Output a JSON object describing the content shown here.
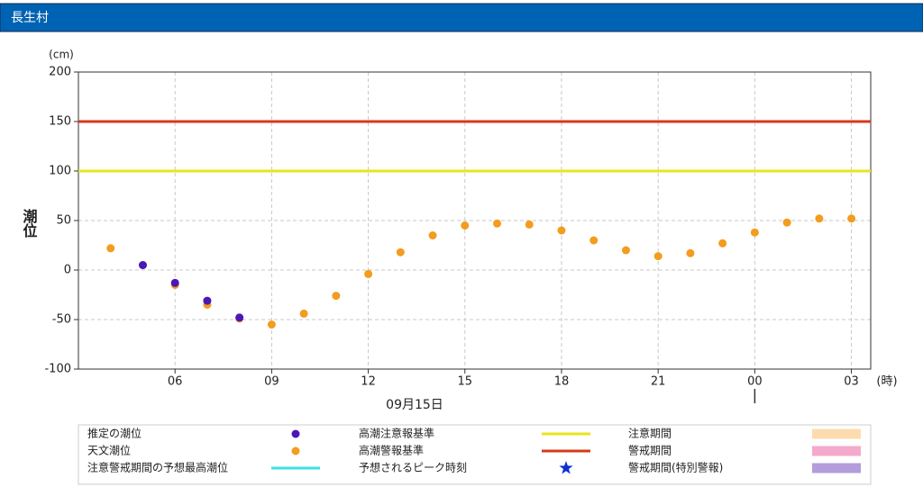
{
  "page_title": "長生村",
  "chart_data": {
    "type": "scatter",
    "y_label": "潮位",
    "y_unit": "(cm)",
    "x_unit": "(時)",
    "date_label": "09月15日",
    "date_boundary": 24,
    "xlim": [
      3,
      27.6
    ],
    "xticks": [
      {
        "value": 6,
        "label": "06"
      },
      {
        "value": 9,
        "label": "09"
      },
      12,
      15,
      18,
      21,
      {
        "value": 24,
        "label": "00"
      },
      {
        "value": 27,
        "label": "03"
      }
    ],
    "ylim": [
      -100,
      200
    ],
    "yticks": [
      -100,
      -50,
      0,
      50,
      100,
      150,
      200
    ],
    "grid": true,
    "series": [
      {
        "name": "天文潮位",
        "color": "#f39c1e",
        "x": [
          4,
          5,
          6,
          7,
          8,
          9,
          10,
          11,
          12,
          13,
          14,
          15,
          16,
          17,
          18,
          19,
          20,
          21,
          22,
          23,
          24,
          25,
          26,
          27
        ],
        "values": [
          22,
          5,
          -15,
          -35,
          -49,
          -55,
          -44,
          -26,
          -4,
          18,
          35,
          45,
          47,
          46,
          40,
          30,
          20,
          14,
          17,
          27,
          38,
          48,
          52,
          52
        ]
      },
      {
        "name": "推定の潮位",
        "color": "#4a17b8",
        "x": [
          5,
          6,
          7,
          8
        ],
        "values": [
          5,
          -13,
          -31,
          -48
        ]
      }
    ],
    "reference_lines": [
      {
        "name": "高潮注意報基準",
        "value": 100,
        "color": "#e8e41e"
      },
      {
        "name": "高潮警報基準",
        "value": 150,
        "color": "#d63a1a"
      }
    ],
    "legend_extra": [
      {
        "name": "注意警戒期間の予想最高潮位",
        "symbol": "line",
        "color": "#3ee0e6"
      },
      {
        "name": "予想されるピーク時刻",
        "symbol": "star",
        "color": "#1030d0"
      },
      {
        "name": "注意期間",
        "symbol": "box",
        "color": "#fcdcae"
      },
      {
        "name": "警戒期間",
        "symbol": "box",
        "color": "#f5aacb"
      },
      {
        "name": "警戒期間(特別警報)",
        "symbol": "box",
        "color": "#b39ddb"
      }
    ]
  }
}
